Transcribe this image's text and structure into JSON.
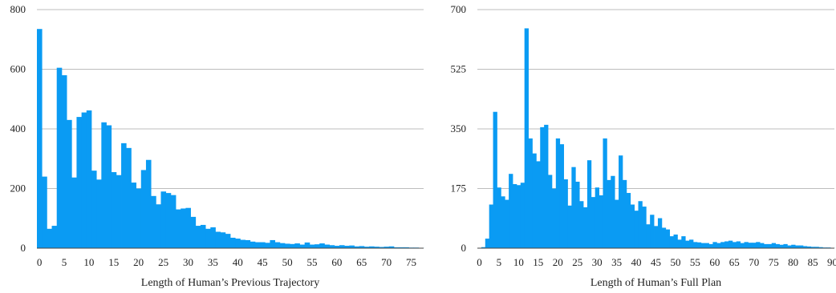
{
  "chart_data": [
    {
      "type": "bar",
      "title": "",
      "xlabel": "Length of Human’s Previous Trajectory",
      "ylabel": "",
      "xlim": [
        0,
        78
      ],
      "ylim": [
        0,
        800
      ],
      "xticks": [
        0,
        5,
        10,
        15,
        20,
        25,
        30,
        35,
        40,
        45,
        50,
        55,
        60,
        65,
        70,
        75
      ],
      "yticks": [
        0,
        200,
        400,
        600,
        800
      ],
      "grid": "horizontal",
      "color": "#0a9bf3",
      "x": [
        0,
        1,
        2,
        3,
        4,
        5,
        6,
        7,
        8,
        9,
        10,
        11,
        12,
        13,
        14,
        15,
        16,
        17,
        18,
        19,
        20,
        21,
        22,
        23,
        24,
        25,
        26,
        27,
        28,
        29,
        30,
        31,
        32,
        33,
        34,
        35,
        36,
        37,
        38,
        39,
        40,
        41,
        42,
        43,
        44,
        45,
        46,
        47,
        48,
        49,
        50,
        51,
        52,
        53,
        54,
        55,
        56,
        57,
        58,
        59,
        60,
        61,
        62,
        63,
        64,
        65,
        66,
        67,
        68,
        69,
        70,
        71,
        72,
        73,
        74,
        75,
        76,
        77
      ],
      "values": [
        735,
        240,
        65,
        75,
        605,
        580,
        430,
        237,
        440,
        455,
        462,
        260,
        230,
        422,
        412,
        255,
        245,
        352,
        336,
        220,
        200,
        262,
        296,
        175,
        147,
        190,
        185,
        178,
        130,
        133,
        135,
        105,
        75,
        78,
        65,
        70,
        55,
        53,
        48,
        35,
        32,
        28,
        27,
        22,
        20,
        20,
        18,
        27,
        20,
        17,
        15,
        14,
        16,
        12,
        19,
        12,
        13,
        16,
        12,
        10,
        8,
        10,
        8,
        9,
        6,
        7,
        5,
        6,
        5,
        4,
        5,
        6,
        3,
        3,
        3,
        2,
        2,
        1
      ]
    },
    {
      "type": "bar",
      "title": "",
      "xlabel": "Length of Human’s Full Plan",
      "ylabel": "",
      "xlim": [
        0,
        91
      ],
      "ylim": [
        0,
        700
      ],
      "xticks": [
        0,
        5,
        10,
        15,
        20,
        25,
        30,
        35,
        40,
        45,
        50,
        55,
        60,
        65,
        70,
        75,
        80,
        85,
        90
      ],
      "yticks": [
        0,
        175,
        350,
        525,
        700
      ],
      "grid": "horizontal",
      "color": "#0a9bf3",
      "x": [
        1,
        2,
        3,
        4,
        5,
        6,
        7,
        8,
        9,
        10,
        11,
        12,
        13,
        14,
        15,
        16,
        17,
        18,
        19,
        20,
        21,
        22,
        23,
        24,
        25,
        26,
        27,
        28,
        29,
        30,
        31,
        32,
        33,
        34,
        35,
        36,
        37,
        38,
        39,
        40,
        41,
        42,
        43,
        44,
        45,
        46,
        47,
        48,
        49,
        50,
        51,
        52,
        53,
        54,
        55,
        56,
        57,
        58,
        59,
        60,
        61,
        62,
        63,
        64,
        65,
        66,
        67,
        68,
        69,
        70,
        71,
        72,
        73,
        74,
        75,
        76,
        77,
        78,
        79,
        80,
        81,
        82,
        83,
        84,
        85,
        86,
        87,
        88,
        89,
        90
      ],
      "values": [
        3,
        28,
        128,
        400,
        178,
        152,
        142,
        218,
        188,
        185,
        192,
        645,
        322,
        278,
        255,
        355,
        362,
        215,
        175,
        322,
        305,
        202,
        125,
        238,
        195,
        138,
        120,
        258,
        150,
        178,
        155,
        322,
        200,
        212,
        142,
        272,
        200,
        162,
        128,
        110,
        138,
        122,
        70,
        98,
        65,
        88,
        60,
        55,
        35,
        40,
        25,
        35,
        22,
        25,
        18,
        17,
        15,
        15,
        12,
        18,
        15,
        18,
        20,
        22,
        18,
        20,
        15,
        18,
        16,
        16,
        18,
        15,
        12,
        12,
        15,
        12,
        10,
        12,
        8,
        10,
        8,
        8,
        6,
        5,
        4,
        4,
        3,
        2,
        2,
        1
      ]
    }
  ]
}
